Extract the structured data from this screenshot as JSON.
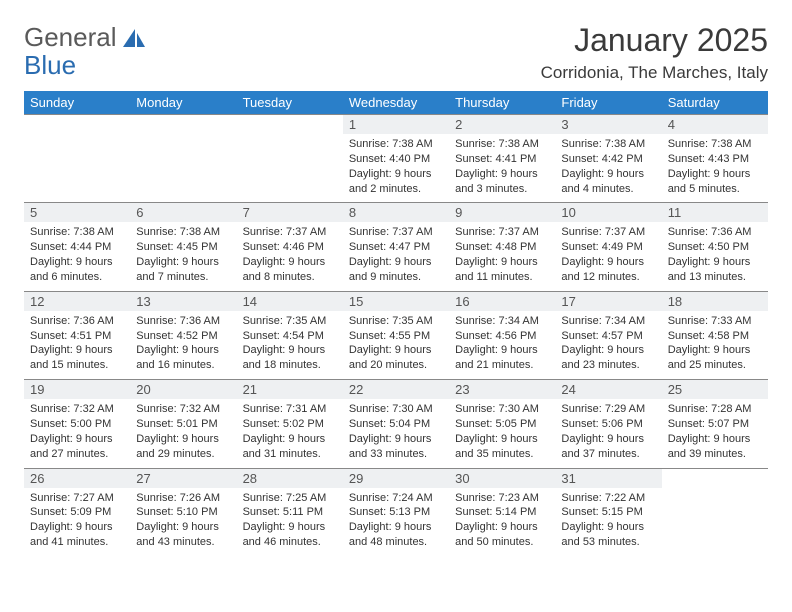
{
  "brand": {
    "part1": "General",
    "part2": "Blue"
  },
  "title": "January 2025",
  "location": "Corridonia, The Marches, Italy",
  "colors": {
    "header_bg": "#2a7fc9",
    "header_text": "#ffffff",
    "daynum_bg": "#eef0f2",
    "border": "#888888",
    "text": "#333333",
    "logo_gray": "#5a5a5a",
    "logo_blue": "#2a6cb0"
  },
  "weekdays": [
    "Sunday",
    "Monday",
    "Tuesday",
    "Wednesday",
    "Thursday",
    "Friday",
    "Saturday"
  ],
  "weeks": [
    [
      null,
      null,
      null,
      {
        "n": "1",
        "sr": "7:38 AM",
        "ss": "4:40 PM",
        "dl": "9 hours and 2 minutes."
      },
      {
        "n": "2",
        "sr": "7:38 AM",
        "ss": "4:41 PM",
        "dl": "9 hours and 3 minutes."
      },
      {
        "n": "3",
        "sr": "7:38 AM",
        "ss": "4:42 PM",
        "dl": "9 hours and 4 minutes."
      },
      {
        "n": "4",
        "sr": "7:38 AM",
        "ss": "4:43 PM",
        "dl": "9 hours and 5 minutes."
      }
    ],
    [
      {
        "n": "5",
        "sr": "7:38 AM",
        "ss": "4:44 PM",
        "dl": "9 hours and 6 minutes."
      },
      {
        "n": "6",
        "sr": "7:38 AM",
        "ss": "4:45 PM",
        "dl": "9 hours and 7 minutes."
      },
      {
        "n": "7",
        "sr": "7:37 AM",
        "ss": "4:46 PM",
        "dl": "9 hours and 8 minutes."
      },
      {
        "n": "8",
        "sr": "7:37 AM",
        "ss": "4:47 PM",
        "dl": "9 hours and 9 minutes."
      },
      {
        "n": "9",
        "sr": "7:37 AM",
        "ss": "4:48 PM",
        "dl": "9 hours and 11 minutes."
      },
      {
        "n": "10",
        "sr": "7:37 AM",
        "ss": "4:49 PM",
        "dl": "9 hours and 12 minutes."
      },
      {
        "n": "11",
        "sr": "7:36 AM",
        "ss": "4:50 PM",
        "dl": "9 hours and 13 minutes."
      }
    ],
    [
      {
        "n": "12",
        "sr": "7:36 AM",
        "ss": "4:51 PM",
        "dl": "9 hours and 15 minutes."
      },
      {
        "n": "13",
        "sr": "7:36 AM",
        "ss": "4:52 PM",
        "dl": "9 hours and 16 minutes."
      },
      {
        "n": "14",
        "sr": "7:35 AM",
        "ss": "4:54 PM",
        "dl": "9 hours and 18 minutes."
      },
      {
        "n": "15",
        "sr": "7:35 AM",
        "ss": "4:55 PM",
        "dl": "9 hours and 20 minutes."
      },
      {
        "n": "16",
        "sr": "7:34 AM",
        "ss": "4:56 PM",
        "dl": "9 hours and 21 minutes."
      },
      {
        "n": "17",
        "sr": "7:34 AM",
        "ss": "4:57 PM",
        "dl": "9 hours and 23 minutes."
      },
      {
        "n": "18",
        "sr": "7:33 AM",
        "ss": "4:58 PM",
        "dl": "9 hours and 25 minutes."
      }
    ],
    [
      {
        "n": "19",
        "sr": "7:32 AM",
        "ss": "5:00 PM",
        "dl": "9 hours and 27 minutes."
      },
      {
        "n": "20",
        "sr": "7:32 AM",
        "ss": "5:01 PM",
        "dl": "9 hours and 29 minutes."
      },
      {
        "n": "21",
        "sr": "7:31 AM",
        "ss": "5:02 PM",
        "dl": "9 hours and 31 minutes."
      },
      {
        "n": "22",
        "sr": "7:30 AM",
        "ss": "5:04 PM",
        "dl": "9 hours and 33 minutes."
      },
      {
        "n": "23",
        "sr": "7:30 AM",
        "ss": "5:05 PM",
        "dl": "9 hours and 35 minutes."
      },
      {
        "n": "24",
        "sr": "7:29 AM",
        "ss": "5:06 PM",
        "dl": "9 hours and 37 minutes."
      },
      {
        "n": "25",
        "sr": "7:28 AM",
        "ss": "5:07 PM",
        "dl": "9 hours and 39 minutes."
      }
    ],
    [
      {
        "n": "26",
        "sr": "7:27 AM",
        "ss": "5:09 PM",
        "dl": "9 hours and 41 minutes."
      },
      {
        "n": "27",
        "sr": "7:26 AM",
        "ss": "5:10 PM",
        "dl": "9 hours and 43 minutes."
      },
      {
        "n": "28",
        "sr": "7:25 AM",
        "ss": "5:11 PM",
        "dl": "9 hours and 46 minutes."
      },
      {
        "n": "29",
        "sr": "7:24 AM",
        "ss": "5:13 PM",
        "dl": "9 hours and 48 minutes."
      },
      {
        "n": "30",
        "sr": "7:23 AM",
        "ss": "5:14 PM",
        "dl": "9 hours and 50 minutes."
      },
      {
        "n": "31",
        "sr": "7:22 AM",
        "ss": "5:15 PM",
        "dl": "9 hours and 53 minutes."
      },
      null
    ]
  ],
  "labels": {
    "sunrise": "Sunrise:",
    "sunset": "Sunset:",
    "daylight": "Daylight:"
  }
}
